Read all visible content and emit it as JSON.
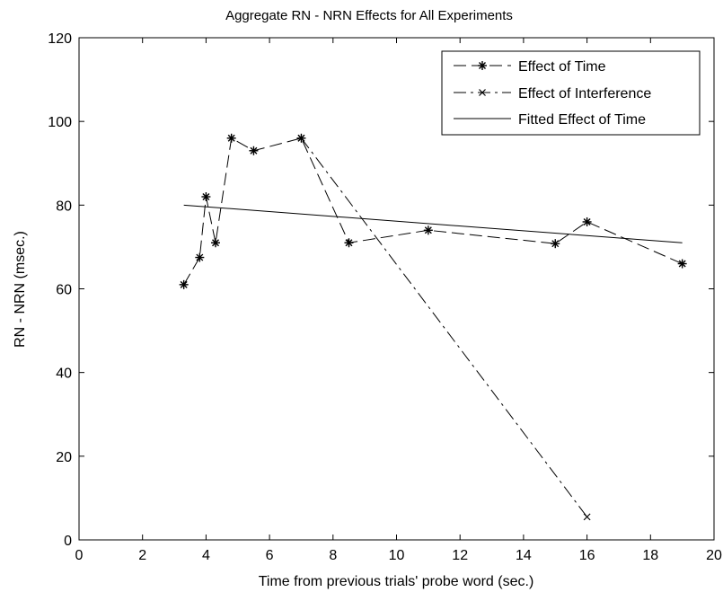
{
  "chart_data": {
    "type": "line",
    "title": "Aggregate RN - NRN Effects for All Experiments",
    "xlabel": "Time from previous trials' probe word (sec.)",
    "ylabel": "RN - NRN (msec.)",
    "xlim": [
      0,
      20
    ],
    "ylim": [
      0,
      120
    ],
    "xticks": [
      0,
      2,
      4,
      6,
      8,
      10,
      12,
      14,
      16,
      18,
      20
    ],
    "yticks": [
      0,
      20,
      40,
      60,
      80,
      100,
      120
    ],
    "grid": false,
    "legend_position": "top-right",
    "series": [
      {
        "name": "Effect of Time",
        "line_style": "dashed",
        "marker": "asterisk",
        "x": [
          3.3,
          3.8,
          4.0,
          4.3,
          4.8,
          5.5,
          7.0,
          8.5,
          11.0,
          15.0,
          16.0,
          19.0
        ],
        "y": [
          61,
          67.5,
          82,
          71,
          96,
          93,
          96,
          71,
          74,
          70.8,
          76,
          66
        ]
      },
      {
        "name": "Effect of Interference",
        "line_style": "dash-dot",
        "marker": "x",
        "x": [
          7.0,
          16.0
        ],
        "y": [
          96,
          5.5
        ]
      },
      {
        "name": "Fitted Effect of Time",
        "line_style": "solid",
        "marker": "none",
        "x": [
          3.3,
          19.0
        ],
        "y": [
          80,
          71
        ]
      }
    ]
  }
}
